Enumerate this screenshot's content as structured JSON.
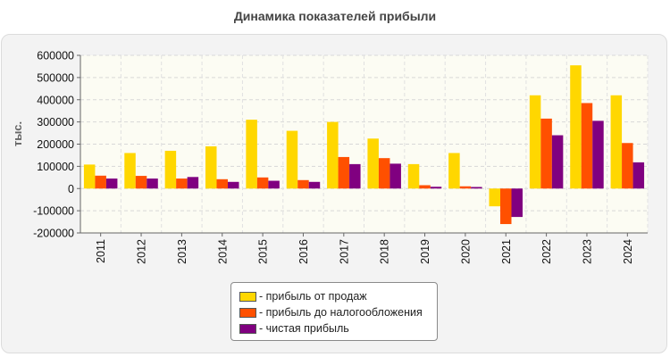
{
  "chart_data": {
    "type": "bar",
    "title": "Динамика показателей прибыли",
    "ylabel": "тыс.",
    "xlabel": "",
    "ylim": [
      -200000,
      600000
    ],
    "yticks": [
      600000,
      500000,
      400000,
      300000,
      200000,
      100000,
      0,
      -100000,
      -200000
    ],
    "categories": [
      "2011",
      "2012",
      "2013",
      "2014",
      "2015",
      "2016",
      "2017",
      "2018",
      "2019",
      "2020",
      "2021",
      "2022",
      "2023",
      "2024"
    ],
    "series": [
      {
        "name": "- прибыль от продаж",
        "color": "#ffd700",
        "values": [
          108000,
          160000,
          170000,
          190000,
          310000,
          260000,
          300000,
          225000,
          110000,
          160000,
          -80000,
          420000,
          555000,
          420000
        ]
      },
      {
        "name": "- прибыль до налогообложения",
        "color": "#ff5000",
        "values": [
          58000,
          57000,
          45000,
          42000,
          50000,
          38000,
          142000,
          137000,
          15000,
          10000,
          -160000,
          315000,
          385000,
          205000
        ]
      },
      {
        "name": "- чистая прибыль",
        "color": "#800080",
        "values": [
          45000,
          45000,
          52000,
          30000,
          35000,
          30000,
          110000,
          112000,
          8000,
          7000,
          -128000,
          240000,
          305000,
          118000
        ]
      }
    ],
    "grid": true,
    "legend_position": "bottom"
  }
}
